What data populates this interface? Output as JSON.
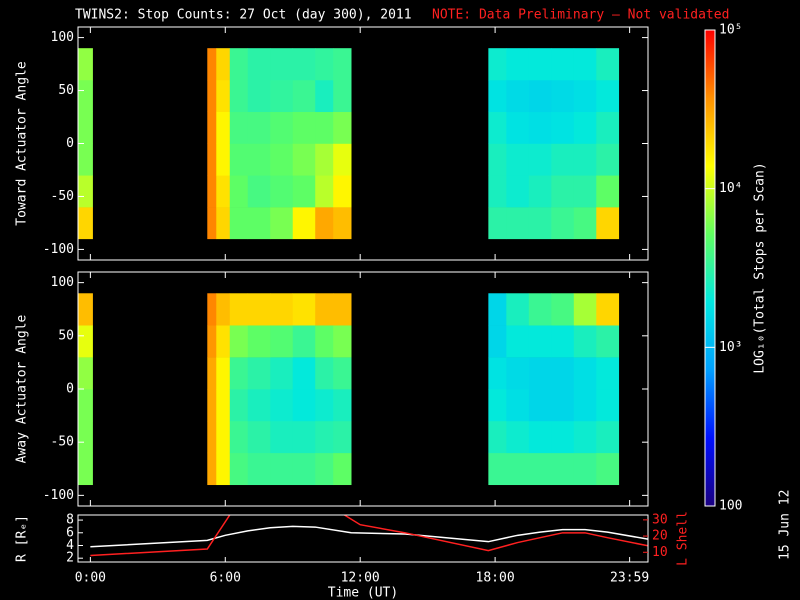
{
  "chart_data": [
    {
      "type": "heatmap",
      "title": "TWINS2: Stop Counts: 27 Oct (day 300), 2011",
      "note": "NOTE: Data Preliminary – Not validated",
      "ylabel": "Toward Actuator Angle",
      "ylim": [
        -110,
        110
      ],
      "yticks": [
        -100,
        -50,
        0,
        50,
        100
      ],
      "x_edges": [
        -0.55,
        0.1,
        5.2,
        5.6,
        6.2,
        7,
        8,
        9,
        10,
        10.8,
        11.6,
        17.7,
        18.5,
        19.5,
        20.5,
        21.5,
        22.5,
        23.5,
        24.8
      ],
      "y_edges": [
        -90,
        -60,
        -30,
        0,
        30,
        60,
        90
      ],
      "values": [
        [
          20000,
          9000,
          6000,
          6000,
          6000,
          7000
        ],
        [
          null,
          null,
          null,
          null,
          null,
          null
        ],
        [
          40000,
          40000,
          40000,
          40000,
          40000,
          40000
        ],
        [
          20000,
          18000,
          15000,
          15000,
          18000,
          20000
        ],
        [
          5000,
          5000,
          4500,
          4000,
          3500,
          3500
        ],
        [
          5000,
          4000,
          4500,
          4000,
          3000,
          3000
        ],
        [
          6000,
          4500,
          5000,
          4500,
          3200,
          3000
        ],
        [
          15000,
          5000,
          6000,
          5000,
          3500,
          3000
        ],
        [
          30000,
          9000,
          8000,
          5000,
          2500,
          3200
        ],
        [
          25000,
          15000,
          12000,
          6000,
          3500,
          3500
        ],
        [
          null,
          null,
          null,
          null,
          null,
          null
        ],
        [
          3000,
          2500,
          2500,
          2200,
          1800,
          2200
        ],
        [
          3000,
          2200,
          2200,
          1800,
          1600,
          2000
        ],
        [
          3000,
          2500,
          2200,
          1700,
          1500,
          2000
        ],
        [
          3500,
          3000,
          2500,
          1800,
          1600,
          2000
        ],
        [
          4000,
          3000,
          2500,
          2000,
          1700,
          2000
        ],
        [
          20000,
          5000,
          3000,
          2500,
          2000,
          2500
        ]
      ],
      "colorbar": {
        "label": "LOG₁₀(Total Stops per Scan)",
        "log": true,
        "lim": [
          100,
          100000
        ],
        "ticks": [
          100,
          {
            "value": 1000,
            "label": "10³"
          },
          {
            "value": 10000,
            "label": "10⁴"
          },
          {
            "value": 100000,
            "label": "10⁵"
          }
        ],
        "colormap": [
          "#1a0080",
          "#0010ff",
          "#00a0ff",
          "#00e8e0",
          "#60ff60",
          "#ffff00",
          "#ff9000",
          "#ff0000"
        ]
      }
    },
    {
      "type": "heatmap",
      "ylabel": "Away Actuator Angle",
      "ylim": [
        -110,
        110
      ],
      "yticks": [
        -100,
        -50,
        0,
        50,
        100
      ],
      "x_edges": [
        -0.55,
        0.1,
        5.2,
        5.6,
        6.2,
        7,
        8,
        9,
        10,
        10.8,
        11.6,
        17.7,
        18.5,
        19.5,
        20.5,
        21.5,
        22.5,
        23.5,
        24.8
      ],
      "y_edges": [
        -90,
        -60,
        -30,
        0,
        30,
        60,
        90
      ],
      "values": [
        [
          6000,
          6000,
          6000,
          7000,
          12000,
          25000
        ],
        [
          null,
          null,
          null,
          null,
          null,
          null
        ],
        [
          30000,
          30000,
          30000,
          30000,
          35000,
          40000
        ],
        [
          15000,
          15000,
          15000,
          15000,
          18000,
          25000
        ],
        [
          4000,
          3500,
          3000,
          3500,
          6000,
          20000
        ],
        [
          3500,
          3000,
          2500,
          3000,
          5000,
          20000
        ],
        [
          3500,
          2500,
          2200,
          2500,
          4500,
          20000
        ],
        [
          3500,
          2500,
          2000,
          2000,
          3500,
          18000
        ],
        [
          4000,
          2800,
          2200,
          3000,
          5000,
          25000
        ],
        [
          5000,
          3000,
          2500,
          3500,
          6000,
          25000
        ],
        [
          null,
          null,
          null,
          null,
          null,
          null
        ],
        [
          3500,
          2500,
          2000,
          1800,
          1500,
          1500
        ],
        [
          3500,
          2200,
          1700,
          1600,
          2000,
          2500
        ],
        [
          3500,
          2000,
          1500,
          1500,
          2000,
          3500
        ],
        [
          3500,
          2000,
          1500,
          1500,
          2000,
          4000
        ],
        [
          3500,
          2200,
          1700,
          1700,
          2500,
          8000
        ],
        [
          4000,
          2500,
          2000,
          2000,
          3000,
          20000
        ]
      ]
    },
    {
      "type": "line",
      "xlabel": "Time (UT)",
      "xlim": [
        -0.55,
        24.8
      ],
      "xticks": [
        {
          "value": 0,
          "label": "0:00"
        },
        {
          "value": 6,
          "label": "6:00"
        },
        {
          "value": 12,
          "label": "12:00"
        },
        {
          "value": 18,
          "label": "18:00"
        },
        {
          "value": 23.983,
          "label": "23:59"
        }
      ],
      "ylim": [
        1.4,
        8.8
      ],
      "yticks": [
        2,
        4,
        6,
        8
      ],
      "y2lim": [
        4,
        33
      ],
      "y2ticks": [
        10,
        20,
        30
      ],
      "series": [
        {
          "name": "R [Rₑ]",
          "color": "#ffffff",
          "x": [
            0,
            5.2,
            6,
            7,
            8,
            9,
            10,
            11.6,
            14,
            17.7,
            19,
            20,
            21,
            22,
            23,
            24.8
          ],
          "values": [
            3.8,
            4.8,
            5.6,
            6.3,
            6.8,
            7,
            6.9,
            6,
            5.8,
            4.6,
            5.6,
            6.1,
            6.5,
            6.5,
            6.1,
            5
          ]
        },
        {
          "name": "L Shell",
          "color": "#ff2020",
          "axis": "y2",
          "x": [
            0,
            5.2,
            6.2,
            9,
            11.3,
            12,
            14,
            17.7,
            19,
            21,
            22,
            23,
            24.8
          ],
          "values": [
            8,
            12,
            33,
            null,
            33,
            27,
            22,
            11,
            16,
            22,
            22,
            19,
            14
          ]
        }
      ]
    }
  ],
  "footer": {
    "date": "15 Jun 12"
  }
}
